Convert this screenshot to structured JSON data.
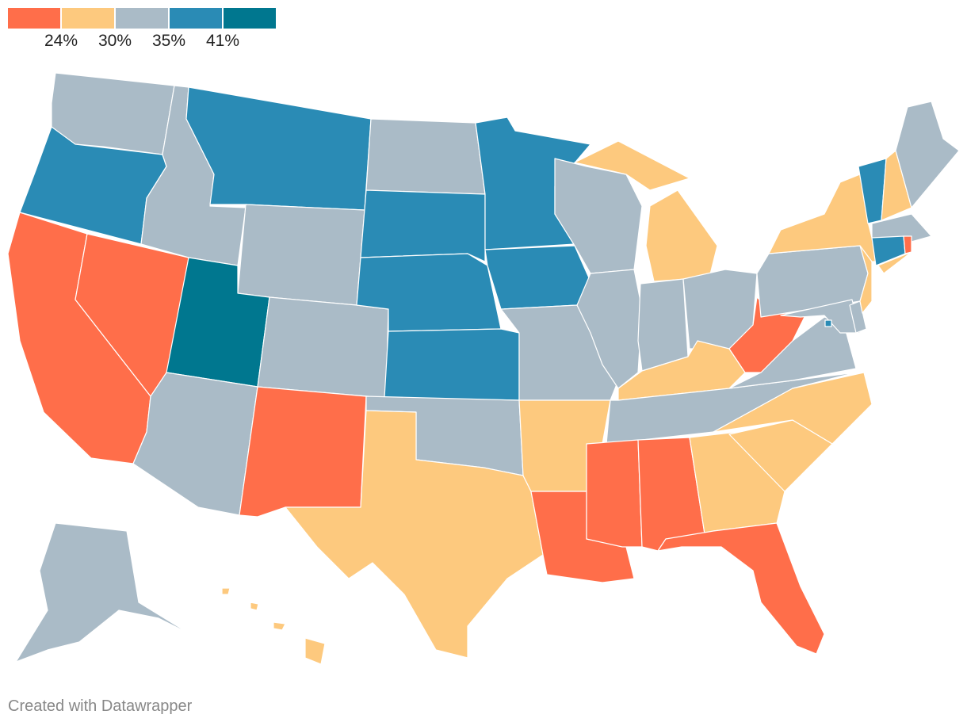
{
  "legend": {
    "colors": [
      "#ff6e4a",
      "#fdc97e",
      "#aabbc7",
      "#2a8bb5",
      "#00778f"
    ],
    "thresholds": [
      "24%",
      "30%",
      "35%",
      "41%"
    ]
  },
  "map_data": {
    "type": "choropleth",
    "bucket_by_state": {
      "WA": 2,
      "OR": 3,
      "CA": 0,
      "NV": 0,
      "ID": 2,
      "MT": 3,
      "WY": 2,
      "UT": 4,
      "AZ": 2,
      "CO": 2,
      "NM": 0,
      "ND": 2,
      "SD": 3,
      "NE": 3,
      "KS": 3,
      "OK": 2,
      "TX": 1,
      "MN": 3,
      "IA": 3,
      "MO": 2,
      "AR": 1,
      "LA": 0,
      "WI": 2,
      "IL": 2,
      "MI": 1,
      "IN": 2,
      "OH": 2,
      "KY": 1,
      "TN": 2,
      "MS": 0,
      "AL": 0,
      "GA": 1,
      "FL": 0,
      "SC": 1,
      "NC": 1,
      "VA": 2,
      "WV": 0,
      "PA": 2,
      "MD": 2,
      "DE": 2,
      "NJ": 1,
      "NY": 1,
      "VT": 3,
      "NH": 1,
      "ME": 2,
      "MA": 2,
      "CT": 3,
      "RI": 0,
      "DC": 3,
      "AK": 2,
      "HI": 1
    }
  },
  "footer": {
    "credit": "Created with Datawrapper"
  }
}
